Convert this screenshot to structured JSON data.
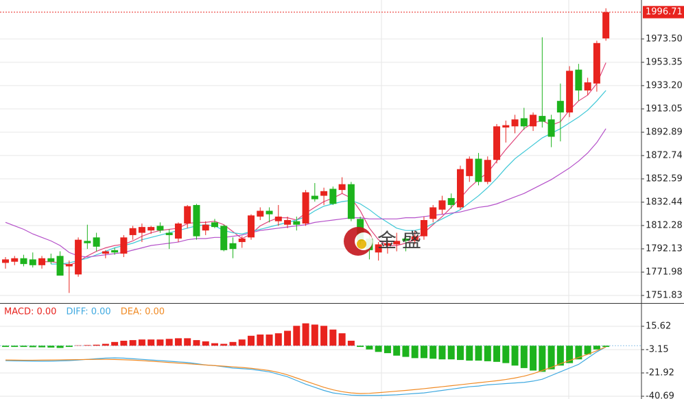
{
  "chart_data": [
    {
      "type": "candlestick",
      "open": [
        1780,
        1781,
        1784,
        1783,
        1778,
        1784,
        1786,
        1777,
        1770,
        1799,
        1802,
        1788,
        1791,
        1788,
        1804,
        1806,
        1808,
        1812,
        1806,
        1801,
        1814,
        1830,
        1808,
        1815,
        1812,
        1797,
        1798,
        1802,
        1820,
        1825,
        1816,
        1813,
        1816,
        1814,
        1838,
        1838,
        1844,
        1843,
        1848,
        1818,
        1801,
        1789,
        1795,
        1796,
        1801,
        1799,
        1803,
        1818,
        1826,
        1836,
        1828,
        1855,
        1870,
        1850,
        1869,
        1897,
        1898,
        1905,
        1898,
        1907,
        1904,
        1920,
        1910,
        1947,
        1929,
        1935,
        1974
      ],
      "high": [
        1785,
        1786,
        1787,
        1789,
        1786,
        1788,
        1790,
        1782,
        1802,
        1813,
        1806,
        1791,
        1793,
        1804,
        1812,
        1814,
        1812,
        1815,
        1809,
        1815,
        1830,
        1831,
        1816,
        1818,
        1813,
        1802,
        1803,
        1822,
        1828,
        1828,
        1830,
        1820,
        1820,
        1843,
        1849,
        1845,
        1846,
        1854,
        1850,
        1820,
        1805,
        1798,
        1800,
        1806,
        1804,
        1808,
        1820,
        1830,
        1838,
        1840,
        1864,
        1872,
        1875,
        1872,
        1900,
        1903,
        1908,
        1914,
        1910,
        1975,
        1908,
        1935,
        1950,
        1952,
        1940,
        1972,
        2000
      ],
      "low": [
        1775,
        1778,
        1777,
        1776,
        1775,
        1779,
        1770,
        1754,
        1768,
        1792,
        1790,
        1784,
        1787,
        1785,
        1800,
        1798,
        1805,
        1806,
        1792,
        1798,
        1810,
        1800,
        1804,
        1810,
        1790,
        1784,
        1793,
        1800,
        1817,
        1815,
        1812,
        1810,
        1808,
        1812,
        1833,
        1830,
        1830,
        1840,
        1816,
        1796,
        1783,
        1782,
        1788,
        1790,
        1790,
        1796,
        1800,
        1815,
        1822,
        1827,
        1826,
        1850,
        1847,
        1848,
        1866,
        1884,
        1892,
        1895,
        1894,
        1897,
        1880,
        1885,
        1906,
        1920,
        1925,
        1928,
        1972
      ],
      "close": [
        1783,
        1784,
        1779,
        1778,
        1784,
        1781,
        1769,
        1779,
        1800,
        1797,
        1794,
        1790,
        1789,
        1802,
        1810,
        1811,
        1811,
        1808,
        1804,
        1814,
        1829,
        1803,
        1813,
        1811,
        1791,
        1792,
        1801,
        1821,
        1825,
        1822,
        1820,
        1817,
        1813,
        1841,
        1835,
        1842,
        1831,
        1848,
        1818,
        1799,
        1791,
        1796,
        1797,
        1799,
        1799,
        1803,
        1817,
        1828,
        1834,
        1830,
        1861,
        1870,
        1850,
        1869,
        1898,
        1899,
        1904,
        1898,
        1908,
        1902,
        1889,
        1910,
        1946,
        1929,
        1936,
        1970,
        1996.71
      ],
      "up_color": "#e8231e",
      "down_color": "#1db31d",
      "series": [
        {
          "color": "#e0457b",
          "values": [
            null,
            null,
            null,
            null,
            1781,
            1781,
            1780,
            1778,
            1781,
            1786,
            1790,
            1793,
            1795,
            1796,
            1799,
            1803,
            1806,
            1808,
            1809,
            1810,
            1814,
            1815,
            1815,
            1816,
            1813,
            1807,
            1801,
            1805,
            1812,
            1816,
            1819,
            1819,
            1817,
            1823,
            1828,
            1833,
            1836,
            1840,
            1836,
            1825,
            1810,
            1800,
            1795,
            1795,
            1797,
            1800,
            1806,
            1813,
            1820,
            1828,
            1836,
            1845,
            1852,
            1858,
            1868,
            1878,
            1887,
            1896,
            1901,
            1903,
            1899,
            1902,
            1912,
            1920,
            1925,
            1935,
            1953
          ]
        },
        {
          "color": "#3cc7d6",
          "values": [
            null,
            null,
            null,
            null,
            null,
            1779,
            1779,
            1780,
            1782,
            1784,
            1787,
            1790,
            1793,
            1795,
            1797,
            1800,
            1802,
            1804,
            1806,
            1808,
            1810,
            1812,
            1813,
            1812,
            1808,
            1806,
            1805,
            1807,
            1809,
            1811,
            1813,
            1815,
            1817,
            1820,
            1825,
            1829,
            1831,
            1833,
            1834,
            1831,
            1826,
            1820,
            1815,
            1810,
            1808,
            1808,
            1810,
            1814,
            1818,
            1822,
            1826,
            1832,
            1838,
            1845,
            1853,
            1862,
            1870,
            1876,
            1882,
            1888,
            1892,
            1896,
            1901,
            1906,
            1912,
            1920,
            1929
          ]
        },
        {
          "color": "#b44fc9",
          "values": [
            1815,
            1812,
            1809,
            1805,
            1802,
            1799,
            1795,
            1789,
            1786,
            1785,
            1786,
            1787,
            1788,
            1789,
            1791,
            1793,
            1795,
            1796,
            1797,
            1798,
            1800,
            1801,
            1801,
            1802,
            1802,
            1803,
            1804,
            1806,
            1808,
            1809,
            1810,
            1811,
            1812,
            1813,
            1815,
            1816,
            1817,
            1818,
            1819,
            1819,
            1818,
            1818,
            1818,
            1818,
            1819,
            1819,
            1820,
            1821,
            1822,
            1823,
            1824,
            1826,
            1828,
            1829,
            1831,
            1834,
            1837,
            1840,
            1844,
            1848,
            1852,
            1857,
            1862,
            1868,
            1875,
            1884,
            1896
          ]
        }
      ],
      "ylim": [
        1745.3,
        2007.2
      ],
      "yticks": [
        1751.83,
        1771.98,
        1792.13,
        1812.28,
        1832.44,
        1852.59,
        1872.74,
        1892.89,
        {
          "value": 1913.05,
          "label": "1913.05"
        },
        {
          "value": 1933.2,
          "label": "1933.20"
        },
        1953.35,
        {
          "value": 1973.5,
          "label": "1973.50"
        }
      ],
      "current_price": {
        "value": 1996.71,
        "label": "1996.71"
      },
      "watermark": "金盛"
    },
    {
      "type": "macd",
      "ylim": [
        -42.9,
        33.8
      ],
      "yticks": [
        15.62,
        -3.15,
        -21.92,
        -40.69
      ],
      "up_color": "#e8231e",
      "down_color": "#1db31d",
      "series": [
        {
          "name": "MACD: 0.00",
          "color": "#e8231e",
          "values": [
            -1,
            -1,
            -1,
            -1.2,
            -1.3,
            -1.5,
            -1.8,
            -1,
            0.3,
            0.5,
            0.8,
            1.5,
            3,
            4,
            4.5,
            5,
            5,
            5,
            5.5,
            6,
            6,
            4.5,
            3.5,
            2,
            1.5,
            3,
            5,
            8,
            9,
            9,
            10,
            12,
            16,
            18,
            17,
            16,
            13,
            10,
            4,
            -1,
            -3,
            -5,
            -6,
            -8,
            -9,
            -10,
            -10,
            -10.5,
            -11,
            -11,
            -11.5,
            -12,
            -12,
            -12.5,
            -13,
            -14,
            -16,
            -18,
            -20,
            -21,
            -19,
            -16,
            -14,
            -11,
            -7,
            -3,
            -1
          ]
        },
        {
          "name": "DIFF: 0.00",
          "color": "#3fa9e0",
          "values": [
            -12,
            -12.2,
            -12.3,
            -12.4,
            -12.5,
            -12.4,
            -12.2,
            -12,
            -11.5,
            -11,
            -10.5,
            -10,
            -9.8,
            -10,
            -10.5,
            -11,
            -11.5,
            -12,
            -12.5,
            -13,
            -13.5,
            -14.5,
            -15.5,
            -16,
            -17,
            -18,
            -18.5,
            -19,
            -20,
            -21,
            -23,
            -25,
            -28,
            -31,
            -33.5,
            -36,
            -38,
            -39,
            -39.8,
            -40,
            -40,
            -40,
            -39.8,
            -39.5,
            -39,
            -38.5,
            -38,
            -37,
            -36,
            -35,
            -34,
            -33,
            -32.5,
            -31.5,
            -31,
            -30.5,
            -30,
            -29.5,
            -28.5,
            -27,
            -24,
            -21,
            -18,
            -15,
            -10,
            -5,
            -1
          ]
        },
        {
          "name": "DEA: 0.00",
          "color": "#f08a24",
          "values": [
            -11.5,
            -11.6,
            -11.7,
            -11.7,
            -11.6,
            -11.5,
            -11.4,
            -11.3,
            -11.2,
            -11.1,
            -11,
            -11,
            -11.1,
            -11.3,
            -11.6,
            -12,
            -12.5,
            -13,
            -13.5,
            -14,
            -14.5,
            -15,
            -15.5,
            -16,
            -16.5,
            -17,
            -17.5,
            -18.2,
            -19,
            -20,
            -21.5,
            -23.5,
            -26,
            -28.5,
            -31,
            -33.5,
            -35.5,
            -37,
            -38,
            -38.5,
            -38.3,
            -37.8,
            -37.2,
            -36.6,
            -36,
            -35.3,
            -34.6,
            -33.8,
            -33,
            -32.2,
            -31.4,
            -30.6,
            -29.8,
            -29,
            -28.2,
            -27.2,
            -26,
            -24.5,
            -22.5,
            -20,
            -17.5,
            -14.5,
            -12,
            -9.5,
            -7,
            -4,
            -1
          ]
        }
      ]
    }
  ]
}
